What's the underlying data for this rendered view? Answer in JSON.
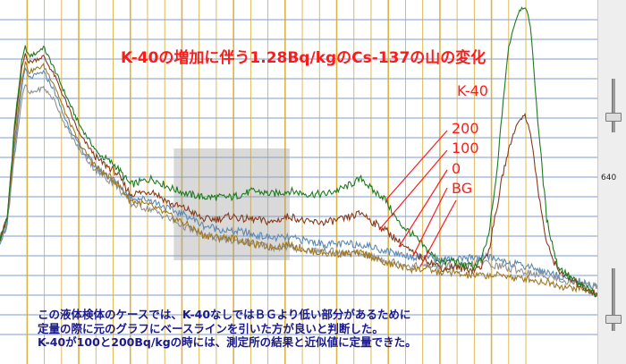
{
  "chart_data": {
    "type": "line",
    "title": "K-40の増加に伴う1.28Bq/kgのCs-137の山の変化",
    "channels": 330,
    "ylim": [
      0,
      100
    ],
    "series": [
      {
        "name": "K-40",
        "color": "#1f7a1f",
        "x": [
          0,
          4,
          8,
          12,
          14,
          16,
          20,
          24,
          30,
          36,
          44,
          54,
          64,
          72,
          84,
          94,
          104,
          112,
          120,
          128,
          134,
          140,
          150,
          160,
          170,
          180,
          190,
          200,
          206,
          212,
          220,
          228,
          236,
          242,
          246,
          250,
          256,
          262,
          266,
          270,
          274,
          278,
          281,
          284,
          287,
          290,
          293,
          297,
          302,
          308,
          314,
          320,
          326,
          330
        ],
        "values": [
          24,
          30,
          60,
          80,
          85,
          82,
          83,
          85,
          78,
          70,
          60,
          51,
          47,
          41,
          43,
          40,
          38,
          37,
          37,
          37,
          38,
          39,
          38,
          39,
          38,
          38,
          40,
          43,
          39,
          37,
          29,
          25,
          20,
          17,
          16,
          17,
          15,
          15,
          17,
          25,
          42,
          68,
          85,
          92,
          97,
          98,
          92,
          62,
          30,
          15,
          12,
          9,
          7,
          6
        ]
      },
      {
        "name": "200",
        "color": "#8a3a1a",
        "x": [
          0,
          4,
          8,
          12,
          14,
          16,
          20,
          24,
          30,
          36,
          44,
          54,
          64,
          72,
          84,
          94,
          104,
          112,
          120,
          128,
          134,
          140,
          150,
          160,
          170,
          180,
          190,
          200,
          206,
          212,
          220,
          228,
          236,
          242,
          246,
          250,
          256,
          262,
          266,
          270,
          274,
          278,
          281,
          284,
          287,
          290,
          293,
          297,
          302,
          308,
          314,
          320,
          326,
          330
        ],
        "values": [
          24,
          30,
          58,
          78,
          83,
          80,
          81,
          82,
          76,
          68,
          57,
          49,
          45,
          38,
          39,
          35,
          33,
          30,
          30,
          31,
          30,
          30,
          29,
          31,
          29,
          29,
          30,
          32,
          29,
          27,
          23,
          19,
          17,
          15,
          14,
          15,
          14,
          14,
          15,
          20,
          32,
          45,
          52,
          58,
          62,
          63,
          58,
          40,
          22,
          14,
          11,
          9,
          7,
          6
        ]
      },
      {
        "name": "100",
        "color": "#a07820",
        "x": [
          0,
          4,
          8,
          12,
          14,
          16,
          20,
          24,
          30,
          36,
          44,
          54,
          64,
          72,
          84,
          94,
          104,
          112,
          120,
          128,
          134,
          140,
          150,
          160,
          170,
          180,
          190,
          200,
          206,
          212,
          220,
          228,
          236,
          242,
          246,
          250,
          256,
          262,
          266,
          270,
          274,
          278,
          281,
          284,
          287,
          290,
          293,
          297,
          302,
          308,
          314,
          320,
          326,
          330
        ],
        "values": [
          24,
          30,
          55,
          75,
          80,
          77,
          78,
          79,
          73,
          64,
          54,
          46,
          42,
          36,
          34,
          31,
          28,
          25,
          24,
          24,
          23,
          22,
          21,
          22,
          20,
          19,
          19,
          19,
          18,
          16,
          15,
          14,
          14,
          13,
          13,
          13,
          12,
          12,
          12,
          12,
          12,
          12,
          12,
          11,
          11,
          11,
          11,
          10,
          10,
          9,
          8,
          8,
          7,
          6
        ]
      },
      {
        "name": "0",
        "color": "#909090",
        "x": [
          0,
          4,
          8,
          12,
          14,
          16,
          20,
          24,
          30,
          36,
          44,
          54,
          64,
          72,
          84,
          94,
          104,
          112,
          120,
          128,
          134,
          140,
          150,
          160,
          170,
          180,
          190,
          200,
          206,
          212,
          220,
          228,
          236,
          242,
          246,
          250,
          256,
          262,
          266,
          270,
          274,
          278,
          281,
          284,
          287,
          290,
          293,
          297,
          302,
          308,
          314,
          320,
          326,
          330
        ],
        "values": [
          24,
          29,
          50,
          68,
          73,
          70,
          71,
          72,
          68,
          60,
          52,
          45,
          41,
          35,
          33,
          30,
          27,
          25,
          24,
          23,
          23,
          22,
          21,
          21,
          20,
          20,
          19,
          19,
          18,
          17,
          16,
          15,
          15,
          15,
          15,
          15,
          15,
          16,
          16,
          16,
          15,
          15,
          14,
          14,
          14,
          13,
          13,
          12,
          12,
          11,
          10,
          10,
          9,
          8
        ]
      },
      {
        "name": "BG",
        "color": "#5a8ab4",
        "x": [
          0,
          4,
          8,
          12,
          14,
          16,
          20,
          24,
          30,
          36,
          44,
          54,
          64,
          72,
          84,
          94,
          104,
          112,
          120,
          128,
          134,
          140,
          150,
          160,
          170,
          180,
          190,
          200,
          206,
          212,
          220,
          228,
          236,
          242,
          246,
          250,
          256,
          262,
          266,
          270,
          274,
          278,
          281,
          284,
          287,
          290,
          293,
          297,
          302,
          308,
          314,
          320,
          326,
          330
        ],
        "values": [
          23,
          28,
          52,
          72,
          78,
          75,
          76,
          77,
          71,
          62,
          53,
          46,
          42,
          37,
          36,
          33,
          31,
          28,
          27,
          26,
          26,
          25,
          24,
          24,
          23,
          22,
          22,
          22,
          21,
          20,
          19,
          18,
          18,
          17,
          17,
          17,
          17,
          18,
          18,
          18,
          17,
          17,
          16,
          16,
          15,
          15,
          15,
          14,
          13,
          12,
          11,
          10,
          9,
          8
        ]
      }
    ],
    "legend_labels": [
      "K-40",
      "200",
      "100",
      "0",
      "BG"
    ],
    "annotation": [
      "この液体検体のケースでは、K-40なしではＢＧより低い部分があるために",
      "定量の際に元のグラフにベースラインを引いた方が良いと判断した。",
      "K-40が100と200Bq/kgの時には、測定所の結果と近似値に定量できた。"
    ],
    "highlight_region": {
      "x": [
        96,
        160
      ]
    },
    "grid": true
  },
  "side_panel": {
    "value": "640"
  },
  "colors": {
    "title": "#ff1a1a",
    "pointer": "#ff1a1a",
    "annotation": "#1a1a8c",
    "gridline": "#7d9ed6",
    "marker_line": "#d6a628",
    "highlight": "#9a9a9a"
  }
}
